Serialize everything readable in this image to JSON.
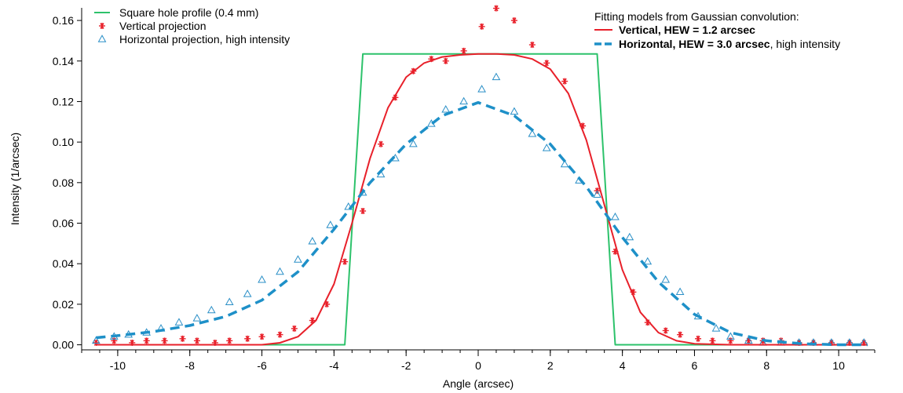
{
  "chart_data": {
    "type": "line",
    "title": "",
    "xlabel": "Angle (arcsec)",
    "ylabel": "Intensity (1/arcsec)",
    "xlim": [
      -11,
      11
    ],
    "ylim": [
      -0.0025,
      0.167
    ],
    "x_ticks": [
      -10,
      -8,
      -6,
      -4,
      -2,
      0,
      2,
      4,
      6,
      8,
      10
    ],
    "x_tick_labels": [
      "-10",
      "-8",
      "-6",
      "-4",
      "-2",
      "0",
      "2",
      "4",
      "6",
      "8",
      "10"
    ],
    "x_minor_step": 0.5,
    "y_ticks": [
      0,
      0.02,
      0.04,
      0.06,
      0.08,
      0.1,
      0.12,
      0.14,
      0.16
    ],
    "y_tick_labels": [
      "0.00",
      "0.02",
      "0.04",
      "0.06",
      "0.08",
      "0.10",
      "0.12",
      "0.14",
      "0.16"
    ],
    "grid": false,
    "legend_left": {
      "placement": "top-left",
      "entries": [
        {
          "label": "Square hole profile (0.4 mm)",
          "symbol": "line",
          "color": "#2dc26b"
        },
        {
          "label": "Vertical projection",
          "symbol": "asterisk",
          "color": "#e8202a"
        },
        {
          "label": "Horizontal projection, high intensity",
          "symbol": "triangle",
          "color": "#2a8fc7"
        }
      ]
    },
    "legend_right": {
      "placement": "top-right",
      "heading": "Fitting models from Gaussian convolution:",
      "entries": [
        {
          "bold": "Vertical, HEW = 1.2 arcsec",
          "rest": "",
          "symbol": "line",
          "color": "#e8202a"
        },
        {
          "bold": "Horizontal, HEW = 3.0 arcsec",
          "rest": ", high intensity",
          "symbol": "dashed",
          "color": "#1e90c8"
        }
      ]
    },
    "series": [
      {
        "name": "Square hole profile (0.4 mm)",
        "style": "line",
        "color": "#2dc26b",
        "x": [
          -10.6,
          -3.7,
          -3.2,
          3.3,
          3.8,
          10.8
        ],
        "y": [
          0.0,
          0.0,
          0.1435,
          0.1435,
          0.0,
          0.0
        ]
      },
      {
        "name": "Vertical projection",
        "style": "asterisk",
        "color": "#e8202a",
        "x": [
          -10.6,
          -10.1,
          -9.6,
          -9.2,
          -8.7,
          -8.2,
          -7.8,
          -7.3,
          -6.9,
          -6.4,
          -6.0,
          -5.5,
          -5.1,
          -4.6,
          -4.2,
          -3.7,
          -3.2,
          -2.7,
          -2.3,
          -1.8,
          -1.3,
          -0.9,
          -0.4,
          0.1,
          0.5,
          1.0,
          1.5,
          1.9,
          2.4,
          2.9,
          3.3,
          3.8,
          4.3,
          4.7,
          5.2,
          5.6,
          6.1,
          6.5,
          7.0,
          7.5,
          7.9,
          8.4,
          8.9,
          9.3,
          9.8,
          10.3,
          10.7
        ],
        "y": [
          0.001,
          0.002,
          0.001,
          0.002,
          0.002,
          0.003,
          0.002,
          0.001,
          0.002,
          0.003,
          0.004,
          0.005,
          0.008,
          0.012,
          0.02,
          0.041,
          0.066,
          0.099,
          0.122,
          0.135,
          0.141,
          0.14,
          0.145,
          0.157,
          0.166,
          0.16,
          0.148,
          0.139,
          0.13,
          0.108,
          0.076,
          0.046,
          0.026,
          0.011,
          0.007,
          0.005,
          0.003,
          0.002,
          0.002,
          0.002,
          0.002,
          0.002,
          0.001,
          0.001,
          0.001,
          0.001,
          0.001
        ]
      },
      {
        "name": "Horizontal projection, high intensity",
        "style": "triangle",
        "color": "#2a8fc7",
        "x": [
          -10.6,
          -10.1,
          -9.7,
          -9.2,
          -8.8,
          -8.3,
          -7.8,
          -7.4,
          -6.9,
          -6.4,
          -6.0,
          -5.5,
          -5.0,
          -4.6,
          -4.1,
          -3.6,
          -3.2,
          -2.7,
          -2.3,
          -1.8,
          -1.3,
          -0.9,
          -0.4,
          0.1,
          0.5,
          1.0,
          1.5,
          1.9,
          2.4,
          2.8,
          3.3,
          3.8,
          4.2,
          4.7,
          5.2,
          5.6,
          6.1,
          6.6,
          7.0,
          7.5,
          7.9,
          8.4,
          8.9,
          9.3,
          9.8,
          10.3,
          10.7
        ],
        "y": [
          0.002,
          0.004,
          0.005,
          0.006,
          0.008,
          0.011,
          0.013,
          0.017,
          0.021,
          0.025,
          0.032,
          0.036,
          0.042,
          0.051,
          0.059,
          0.068,
          0.075,
          0.084,
          0.092,
          0.099,
          0.109,
          0.116,
          0.12,
          0.126,
          0.132,
          0.115,
          0.104,
          0.097,
          0.089,
          0.081,
          0.074,
          0.063,
          0.053,
          0.041,
          0.032,
          0.026,
          0.014,
          0.008,
          0.004,
          0.002,
          0.001,
          0.001,
          0.001,
          0.001,
          0.001,
          0.001,
          0.001
        ]
      },
      {
        "name": "Vertical, HEW = 1.2 arcsec",
        "style": "line",
        "color": "#e8202a",
        "x": [
          -10.6,
          -9.0,
          -7.0,
          -6.0,
          -5.5,
          -5.0,
          -4.5,
          -4.0,
          -3.5,
          -3.0,
          -2.5,
          -2.0,
          -1.5,
          -1.0,
          -0.5,
          0.0,
          0.5,
          1.0,
          1.5,
          2.0,
          2.5,
          3.0,
          3.5,
          4.0,
          4.5,
          5.0,
          5.5,
          6.0,
          7.0,
          9.0,
          10.8
        ],
        "y": [
          0.0,
          0.0,
          0.0,
          0.0,
          0.001,
          0.004,
          0.012,
          0.03,
          0.06,
          0.092,
          0.117,
          0.132,
          0.139,
          0.142,
          0.143,
          0.1435,
          0.1435,
          0.143,
          0.141,
          0.136,
          0.124,
          0.101,
          0.069,
          0.037,
          0.016,
          0.006,
          0.002,
          0.0005,
          0.0,
          0.0,
          0.0
        ]
      },
      {
        "name": "Horizontal, HEW = 3.0 arcsec",
        "style": "dashed",
        "color": "#1e90c8",
        "x": [
          -10.6,
          -10.0,
          -9.0,
          -8.0,
          -7.0,
          -6.0,
          -5.0,
          -4.0,
          -3.0,
          -2.0,
          -1.0,
          0.0,
          1.0,
          2.0,
          3.0,
          4.0,
          5.0,
          6.0,
          7.0,
          8.0,
          9.0,
          10.0,
          10.8
        ],
        "y": [
          0.0035,
          0.0045,
          0.0065,
          0.0095,
          0.014,
          0.022,
          0.036,
          0.057,
          0.08,
          0.099,
          0.113,
          0.1195,
          0.113,
          0.099,
          0.078,
          0.053,
          0.031,
          0.015,
          0.006,
          0.002,
          0.0005,
          0.0,
          0.0
        ]
      }
    ]
  }
}
